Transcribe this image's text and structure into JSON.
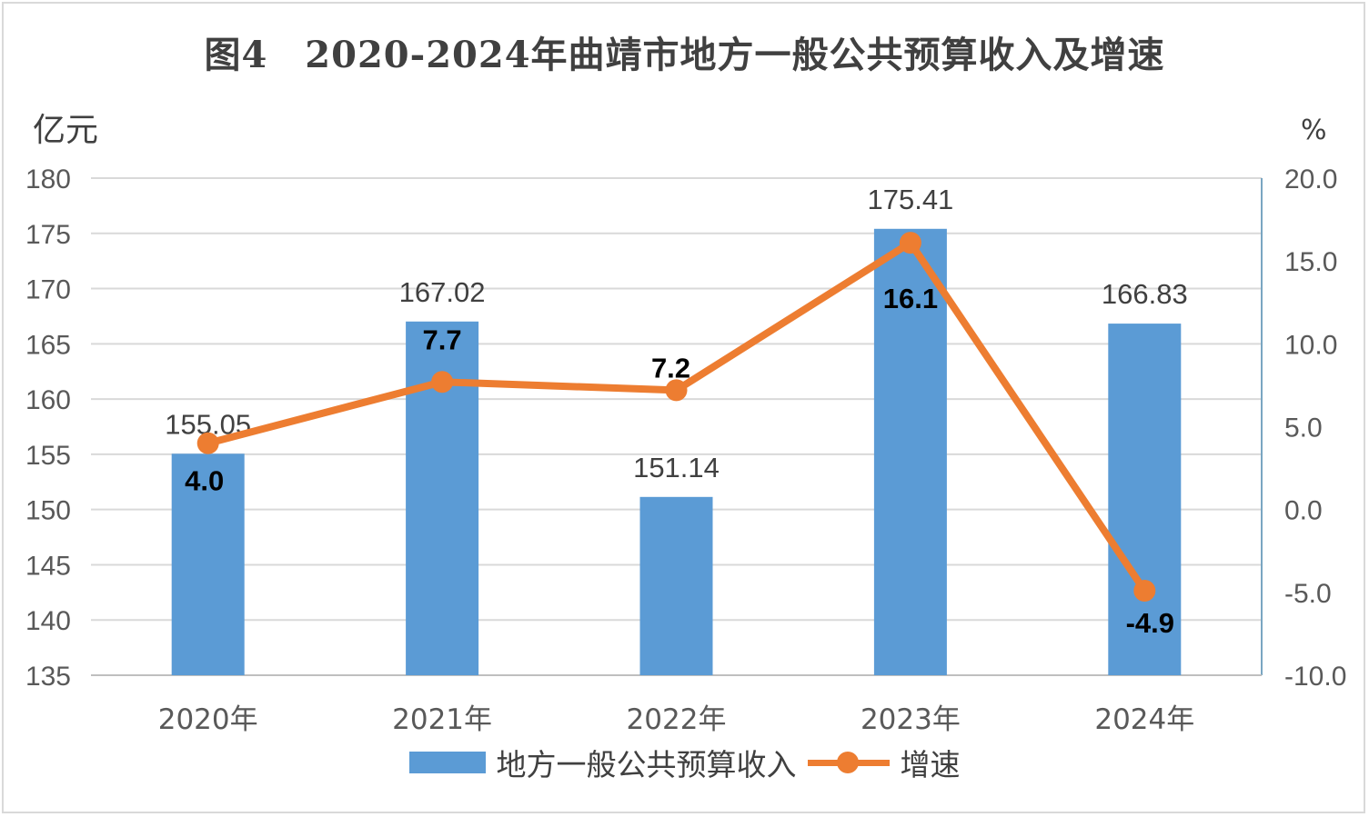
{
  "chart_data": {
    "type": "bar+line",
    "title": "图4　2020-2024年曲靖市地方一般公共预算收入及增速",
    "y_left_unit": "亿元",
    "y_right_unit": "%",
    "categories": [
      "2020年",
      "2021年",
      "2022年",
      "2023年",
      "2024年"
    ],
    "y_left_ticks": [
      "180",
      "175",
      "170",
      "165",
      "160",
      "155",
      "150",
      "145",
      "140",
      "135"
    ],
    "y_right_ticks": [
      "20.0",
      "15.0",
      "10.0",
      "5.0",
      "0.0",
      "-5.0",
      "-10.0"
    ],
    "ylim_left": [
      135,
      180
    ],
    "ylim_right": [
      -10,
      20
    ],
    "grid": true,
    "legend_position": "bottom",
    "series": [
      {
        "name": "地方一般公共预算收入",
        "type": "bar",
        "axis": "left",
        "color": "#5b9bd5",
        "values": [
          155.05,
          167.02,
          151.14,
          175.41,
          166.83
        ],
        "labels": [
          "155.05",
          "167.02",
          "151.14",
          "175.41",
          "166.83"
        ]
      },
      {
        "name": "增速",
        "type": "line",
        "axis": "right",
        "color": "#ed7d31",
        "values": [
          4.0,
          7.7,
          7.2,
          16.1,
          -4.9
        ],
        "labels": [
          "4.0",
          "7.7",
          "7.2",
          "16.1",
          "-4.9"
        ]
      }
    ]
  }
}
